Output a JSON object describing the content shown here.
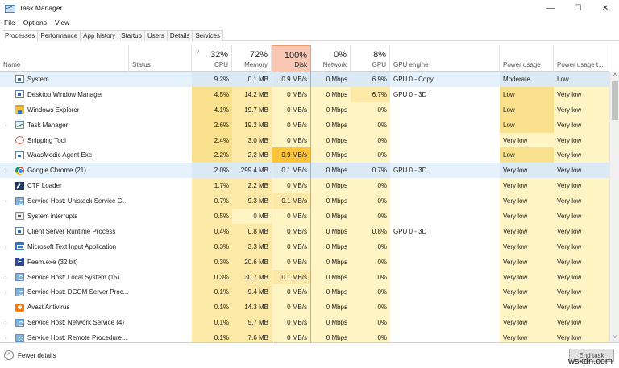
{
  "window": {
    "title": "Task Manager",
    "controls": {
      "minimize": "—",
      "maximize": "☐",
      "close": "✕"
    }
  },
  "menu": [
    "File",
    "Options",
    "View"
  ],
  "tabs": [
    {
      "label": "Processes",
      "active": true
    },
    {
      "label": "Performance"
    },
    {
      "label": "App history"
    },
    {
      "label": "Startup"
    },
    {
      "label": "Users"
    },
    {
      "label": "Details"
    },
    {
      "label": "Services"
    }
  ],
  "columns": {
    "name": {
      "label": "Name"
    },
    "status": {
      "label": "Status"
    },
    "cpu": {
      "label": "CPU",
      "pct": "32%",
      "sort": "˅"
    },
    "memory": {
      "label": "Memory",
      "pct": "72%"
    },
    "disk": {
      "label": "Disk",
      "pct": "100%"
    },
    "network": {
      "label": "Network",
      "pct": "0%"
    },
    "gpu": {
      "label": "GPU",
      "pct": "8%"
    },
    "gpu_engine": {
      "label": "GPU engine"
    },
    "power": {
      "label": "Power usage"
    },
    "power_trend": {
      "label": "Power usage t..."
    }
  },
  "processes": [
    {
      "name": "System",
      "icon": "window",
      "expandable": false,
      "selected": true,
      "status": "",
      "cpu": "9.2%",
      "memory": "0.1 MB",
      "disk": "0.9 MB/s",
      "network": "0 Mbps",
      "gpu": "6.9%",
      "gpu_engine": "GPU 0 - Copy",
      "power": "Moderate",
      "power_trend": "Low"
    },
    {
      "name": "Desktop Window Manager",
      "icon": "window",
      "expandable": false,
      "status": "",
      "cpu": "4.5%",
      "memory": "14.2 MB",
      "disk": "0 MB/s",
      "network": "0 Mbps",
      "gpu": "6.7%",
      "gpu_engine": "GPU 0 - 3D",
      "power": "Low",
      "power_trend": "Very low"
    },
    {
      "name": "Windows Explorer",
      "icon": "folder",
      "expandable": false,
      "status": "",
      "cpu": "4.1%",
      "memory": "19.7 MB",
      "disk": "0 MB/s",
      "network": "0 Mbps",
      "gpu": "0%",
      "gpu_engine": "",
      "power": "Low",
      "power_trend": "Very low"
    },
    {
      "name": "Task Manager",
      "icon": "tm",
      "expandable": true,
      "status": "",
      "cpu": "2.6%",
      "memory": "19.2 MB",
      "disk": "0 MB/s",
      "network": "0 Mbps",
      "gpu": "0%",
      "gpu_engine": "",
      "power": "Low",
      "power_trend": "Very low"
    },
    {
      "name": "Snipping Tool",
      "icon": "snip",
      "expandable": false,
      "status": "",
      "cpu": "2.4%",
      "memory": "3.0 MB",
      "disk": "0 MB/s",
      "network": "0 Mbps",
      "gpu": "0%",
      "gpu_engine": "",
      "power": "Very low",
      "power_trend": "Very low"
    },
    {
      "name": "WaasMedic Agent Exe",
      "icon": "window",
      "expandable": false,
      "status": "",
      "cpu": "2.2%",
      "memory": "2.2 MB",
      "disk": "0.9 MB/s",
      "network": "0 Mbps",
      "gpu": "0%",
      "gpu_engine": "",
      "power": "Low",
      "power_trend": "Very low"
    },
    {
      "name": "Google Chrome (21)",
      "icon": "chrome",
      "expandable": true,
      "selected": true,
      "status": "",
      "cpu": "2.0%",
      "memory": "299.4 MB",
      "disk": "0.1 MB/s",
      "network": "0 Mbps",
      "gpu": "0.7%",
      "gpu_engine": "GPU 0 - 3D",
      "power": "Very low",
      "power_trend": "Very low"
    },
    {
      "name": "CTF Loader",
      "icon": "ctf",
      "expandable": false,
      "status": "",
      "cpu": "1.7%",
      "memory": "2.2 MB",
      "disk": "0 MB/s",
      "network": "0 Mbps",
      "gpu": "0%",
      "gpu_engine": "",
      "power": "Very low",
      "power_trend": "Very low"
    },
    {
      "name": "Service Host: Unistack Service G...",
      "icon": "gear",
      "expandable": true,
      "status": "",
      "cpu": "0.7%",
      "memory": "9.3 MB",
      "disk": "0.1 MB/s",
      "network": "0 Mbps",
      "gpu": "0%",
      "gpu_engine": "",
      "power": "Very low",
      "power_trend": "Very low"
    },
    {
      "name": "System interrupts",
      "icon": "sysint",
      "expandable": false,
      "status": "",
      "cpu": "0.5%",
      "memory": "0 MB",
      "disk": "0 MB/s",
      "network": "0 Mbps",
      "gpu": "0%",
      "gpu_engine": "",
      "power": "Very low",
      "power_trend": "Very low"
    },
    {
      "name": "Client Server Runtime Process",
      "icon": "window",
      "expandable": false,
      "status": "",
      "cpu": "0.4%",
      "memory": "0.8 MB",
      "disk": "0 MB/s",
      "network": "0 Mbps",
      "gpu": "0.8%",
      "gpu_engine": "GPU 0 - 3D",
      "power": "Very low",
      "power_trend": "Very low"
    },
    {
      "name": "Microsoft Text Input Application",
      "icon": "msti",
      "expandable": true,
      "status": "",
      "cpu": "0.3%",
      "memory": "3.3 MB",
      "disk": "0 MB/s",
      "network": "0 Mbps",
      "gpu": "0%",
      "gpu_engine": "",
      "power": "Very low",
      "power_trend": "Very low"
    },
    {
      "name": "Feem.exe (32 bit)",
      "icon": "feem",
      "expandable": false,
      "status": "",
      "cpu": "0.3%",
      "memory": "20.6 MB",
      "disk": "0 MB/s",
      "network": "0 Mbps",
      "gpu": "0%",
      "gpu_engine": "",
      "power": "Very low",
      "power_trend": "Very low"
    },
    {
      "name": "Service Host: Local System (15)",
      "icon": "gear",
      "expandable": true,
      "status": "",
      "cpu": "0.3%",
      "memory": "30.7 MB",
      "disk": "0.1 MB/s",
      "network": "0 Mbps",
      "gpu": "0%",
      "gpu_engine": "",
      "power": "Very low",
      "power_trend": "Very low"
    },
    {
      "name": "Service Host: DCOM Server Proc...",
      "icon": "gear",
      "expandable": true,
      "status": "",
      "cpu": "0.1%",
      "memory": "9.4 MB",
      "disk": "0 MB/s",
      "network": "0 Mbps",
      "gpu": "0%",
      "gpu_engine": "",
      "power": "Very low",
      "power_trend": "Very low"
    },
    {
      "name": "Avast Antivirus",
      "icon": "avast",
      "expandable": false,
      "status": "",
      "cpu": "0.1%",
      "memory": "14.3 MB",
      "disk": "0 MB/s",
      "network": "0 Mbps",
      "gpu": "0%",
      "gpu_engine": "",
      "power": "Very low",
      "power_trend": "Very low"
    },
    {
      "name": "Service Host: Network Service (4)",
      "icon": "gear",
      "expandable": true,
      "status": "",
      "cpu": "0.1%",
      "memory": "5.7 MB",
      "disk": "0 MB/s",
      "network": "0 Mbps",
      "gpu": "0%",
      "gpu_engine": "",
      "power": "Very low",
      "power_trend": "Very low"
    },
    {
      "name": "Service Host: Remote Procedure...",
      "icon": "gear",
      "expandable": true,
      "status": "",
      "cpu": "0.1%",
      "memory": "7.6 MB",
      "disk": "0 MB/s",
      "network": "0 Mbps",
      "gpu": "0%",
      "gpu_engine": "",
      "power": "Very low",
      "power_trend": "Very low"
    }
  ],
  "footer": {
    "fewer_details": "Fewer details",
    "end_task": "End task",
    "watermark": "wsxdn.com"
  },
  "colors": {
    "heat_light": "#fff4c4",
    "heat_mid": "#fce9a8",
    "heat_strong": "#f9e08c",
    "heat_hot": "#ffc339",
    "disk_border": "#f19972",
    "disk_header": "#f9c8b4",
    "selected": "#dbe9f5"
  }
}
